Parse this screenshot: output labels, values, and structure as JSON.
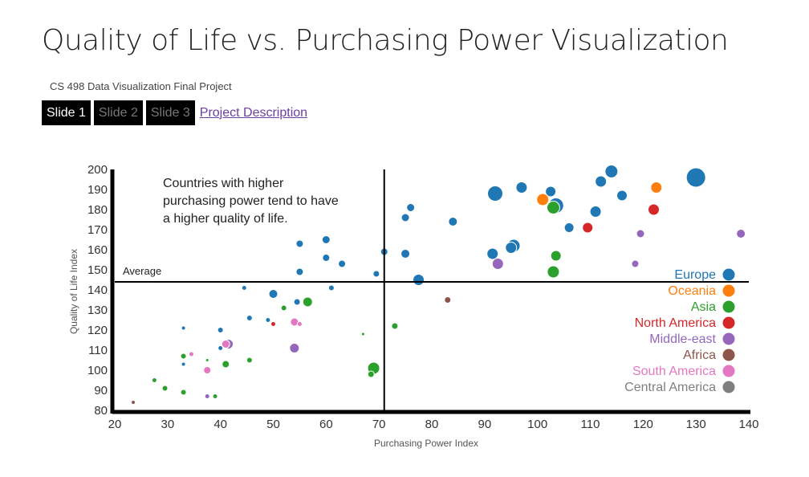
{
  "page": {
    "title": "Quality of Life vs. Purchasing Power Visualization",
    "subtitle": "CS 498 Data Visualization Final Project",
    "nav": [
      {
        "label": "Slide 1",
        "active": true
      },
      {
        "label": "Slide 2",
        "active": false
      },
      {
        "label": "Slide 3",
        "active": false
      }
    ],
    "link_label": "Project Description"
  },
  "chart_data": {
    "type": "scatter",
    "title": "",
    "xlabel": "Purchasing Power Index",
    "ylabel": "Quality of Life Index",
    "xlim": [
      20,
      140
    ],
    "ylim": [
      80,
      200
    ],
    "xticks": [
      "20",
      "30",
      "40",
      "50",
      "60",
      "70",
      "80",
      "90",
      "100",
      "110",
      "120",
      "130",
      "140"
    ],
    "yticks": [
      "80",
      "90",
      "100",
      "110",
      "120",
      "130",
      "140",
      "150",
      "160",
      "170",
      "180",
      "190",
      "200"
    ],
    "grid": false,
    "legend_position": "right",
    "average_line": {
      "label": "Average",
      "x": 71,
      "y": 144
    },
    "annotation": [
      "Countries with higher",
      "purchasing power tend to have",
      "a higher quality of life."
    ],
    "series": [
      {
        "name": "Europe",
        "color": "#1f77b4",
        "points": [
          [
            130,
            196,
            12
          ],
          [
            114,
            199,
            8
          ],
          [
            112,
            194,
            7
          ],
          [
            116,
            187,
            6.5
          ],
          [
            97,
            191,
            7
          ],
          [
            92,
            188,
            9.5
          ],
          [
            102.5,
            189,
            6.5
          ],
          [
            103.5,
            182,
            9.5
          ],
          [
            111,
            179,
            7
          ],
          [
            106,
            171,
            6
          ],
          [
            95.5,
            162,
            8
          ],
          [
            95,
            161,
            7
          ],
          [
            91.5,
            158,
            7
          ],
          [
            84,
            174,
            5.5
          ],
          [
            76,
            181,
            5
          ],
          [
            75,
            176,
            5
          ],
          [
            75,
            158,
            5.5
          ],
          [
            71,
            159,
            4.5
          ],
          [
            77.5,
            145,
            7
          ],
          [
            69.5,
            148,
            4
          ],
          [
            60,
            165,
            5
          ],
          [
            60,
            156,
            4.5
          ],
          [
            63,
            153,
            4.5
          ],
          [
            55,
            163,
            4.5
          ],
          [
            55,
            149,
            4.5
          ],
          [
            50,
            138,
            5.5
          ],
          [
            54.5,
            134,
            4
          ],
          [
            61,
            141,
            3.5
          ],
          [
            44.5,
            141,
            3
          ],
          [
            45.5,
            126,
            3.5
          ],
          [
            49,
            125,
            3
          ],
          [
            40,
            120,
            3.5
          ],
          [
            40,
            111,
            3
          ],
          [
            33,
            121,
            2.5
          ],
          [
            33,
            103,
            2.5
          ]
        ]
      },
      {
        "name": "Oceania",
        "color": "#ff7f0e",
        "points": [
          [
            122.5,
            191,
            7
          ],
          [
            101,
            185,
            7.5
          ]
        ]
      },
      {
        "name": "Asia",
        "color": "#2ca02c",
        "points": [
          [
            103,
            181,
            8
          ],
          [
            103.5,
            157,
            6.5
          ],
          [
            103,
            149,
            7.5
          ],
          [
            69,
            101,
            7.5
          ],
          [
            68.5,
            98,
            4
          ],
          [
            56.5,
            134,
            6
          ],
          [
            52,
            131,
            3.5
          ],
          [
            73,
            122,
            4
          ],
          [
            67,
            118,
            2
          ],
          [
            45.5,
            105,
            3.5
          ],
          [
            41,
            103,
            4.5
          ],
          [
            33,
            107,
            3.5
          ],
          [
            33,
            89,
            3.5
          ],
          [
            29.5,
            91,
            3.5
          ],
          [
            27.5,
            95,
            3
          ],
          [
            39,
            87,
            3
          ],
          [
            37.5,
            105,
            2
          ]
        ]
      },
      {
        "name": "North America",
        "color": "#d62728",
        "points": [
          [
            122,
            180,
            7
          ],
          [
            109.5,
            171,
            6.5
          ],
          [
            50,
            123,
            3
          ]
        ]
      },
      {
        "name": "Middle-east",
        "color": "#9467bd",
        "points": [
          [
            138.5,
            168,
            5.5
          ],
          [
            119.5,
            168,
            5
          ],
          [
            118.5,
            153,
            4.5
          ],
          [
            92.5,
            153,
            7
          ],
          [
            54,
            111,
            6
          ],
          [
            41.5,
            113,
            6
          ],
          [
            37.5,
            87,
            3
          ]
        ]
      },
      {
        "name": "Africa",
        "color": "#8c564b",
        "points": [
          [
            83,
            135,
            4
          ],
          [
            23.5,
            84,
            2.5
          ]
        ]
      },
      {
        "name": "South America",
        "color": "#e377c2",
        "points": [
          [
            54,
            124,
            5
          ],
          [
            55,
            123,
            3
          ],
          [
            41,
            113,
            5
          ],
          [
            37.5,
            100,
            4.5
          ],
          [
            34.5,
            108,
            3
          ]
        ]
      },
      {
        "name": "Central America",
        "color": "#7f7f7f",
        "points": []
      }
    ]
  }
}
